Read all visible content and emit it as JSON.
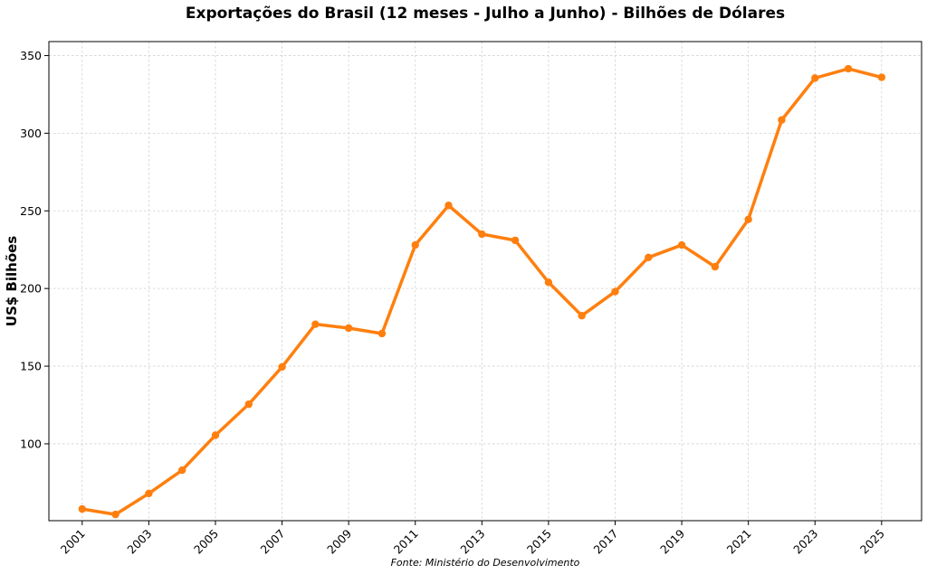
{
  "chart_data": {
    "type": "line",
    "title": "Exportações do Brasil (12 meses - Julho a Junho) - Bilhões de Dólares",
    "xlabel": "",
    "ylabel": "US$ Bilhões",
    "source": "Fonte: Ministério do Desenvolvimento",
    "x": [
      2001,
      2002,
      2003,
      2004,
      2005,
      2006,
      2007,
      2008,
      2009,
      2010,
      2011,
      2012,
      2013,
      2014,
      2015,
      2016,
      2017,
      2018,
      2019,
      2020,
      2021,
      2022,
      2023,
      2024,
      2025
    ],
    "series": [
      {
        "color": "#ff7f0e",
        "values": [
          58,
          54.5,
          68,
          83,
          105.5,
          125.5,
          149.5,
          177,
          174.5,
          171,
          228,
          253.5,
          235,
          231,
          204,
          182.5,
          198,
          220,
          228,
          214,
          244.5,
          308.5,
          335.5,
          341.5,
          336
        ]
      }
    ],
    "xticks": [
      "2001",
      "2003",
      "2005",
      "2007",
      "2009",
      "2011",
      "2013",
      "2015",
      "2017",
      "2019",
      "2021",
      "2023",
      "2025"
    ],
    "yticks": [
      "100",
      "150",
      "200",
      "250",
      "300",
      "350"
    ],
    "xlim": [
      2000,
      2026.2
    ],
    "ylim": [
      50.5,
      359
    ],
    "grid": true
  }
}
